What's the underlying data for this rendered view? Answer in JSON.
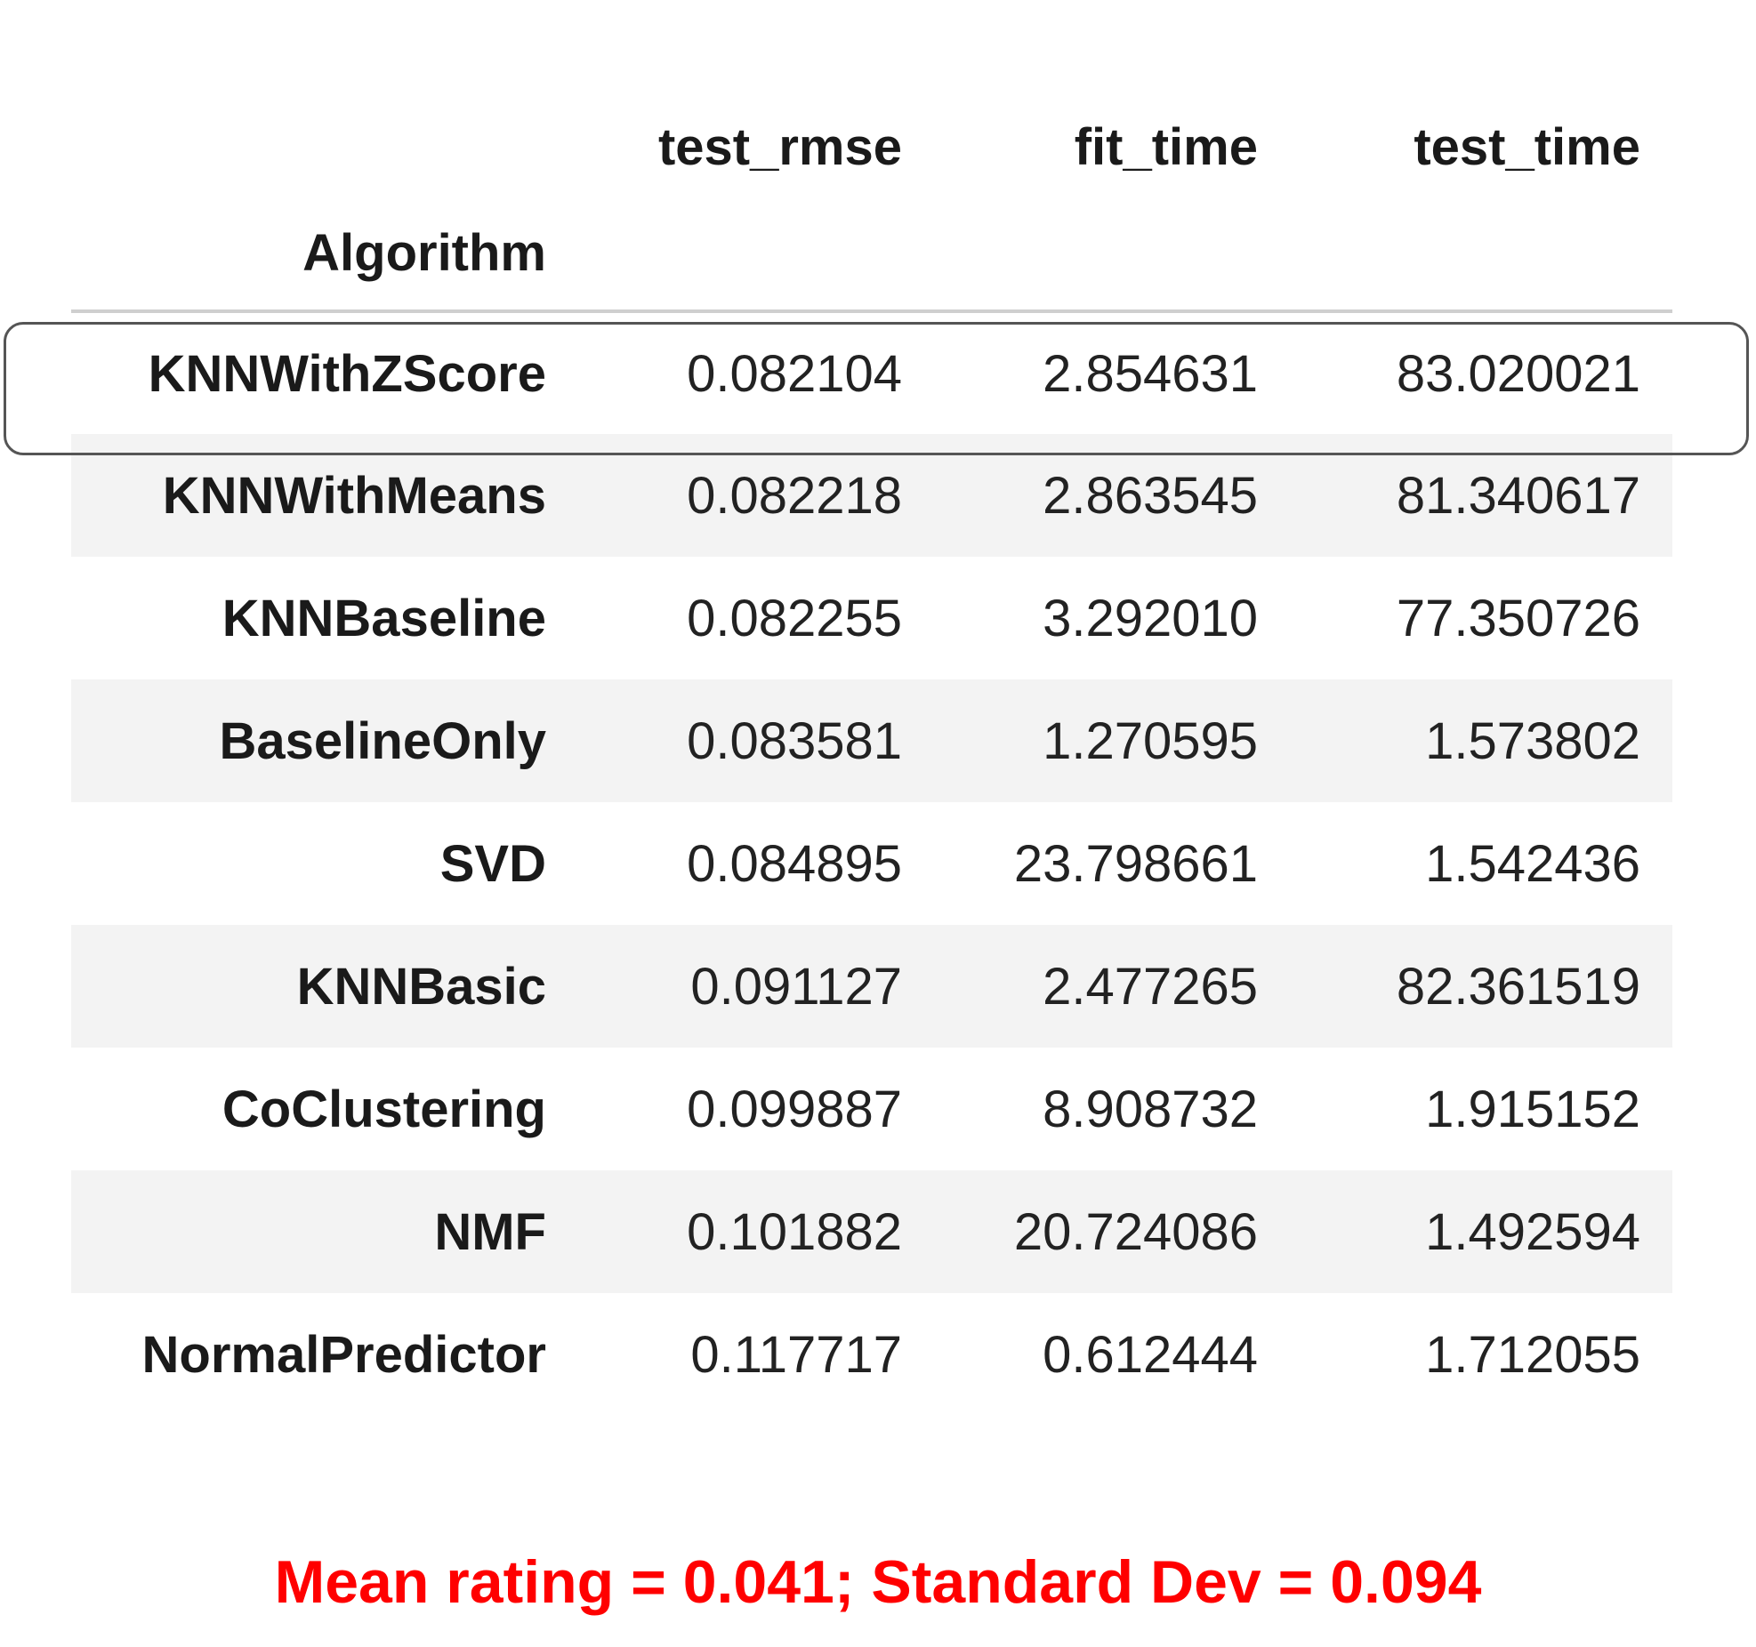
{
  "table": {
    "columns": [
      "test_rmse",
      "fit_time",
      "test_time"
    ],
    "index_name": "Algorithm",
    "rows": [
      {
        "name": "KNNWithZScore",
        "values": [
          "0.082104",
          "2.854631",
          "83.020021"
        ]
      },
      {
        "name": "KNNWithMeans",
        "values": [
          "0.082218",
          "2.863545",
          "81.340617"
        ]
      },
      {
        "name": "KNNBaseline",
        "values": [
          "0.082255",
          "3.292010",
          "77.350726"
        ]
      },
      {
        "name": "BaselineOnly",
        "values": [
          "0.083581",
          "1.270595",
          "1.573802"
        ]
      },
      {
        "name": "SVD",
        "values": [
          "0.084895",
          "23.798661",
          "1.542436"
        ]
      },
      {
        "name": "KNNBasic",
        "values": [
          "0.091127",
          "2.477265",
          "82.361519"
        ]
      },
      {
        "name": "CoClustering",
        "values": [
          "0.099887",
          "8.908732",
          "1.915152"
        ]
      },
      {
        "name": "NMF",
        "values": [
          "0.101882",
          "20.724086",
          "1.492594"
        ]
      },
      {
        "name": "NormalPredictor",
        "values": [
          "0.117717",
          "0.612444",
          "1.712055"
        ]
      }
    ],
    "highlighted_row": "KNNWithZScore"
  },
  "caption": "Mean rating = 0.041; Standard Dev = 0.094",
  "colors": {
    "caption": "#ff0000",
    "stripe": "#f3f3f3",
    "highlight_border": "#555555"
  }
}
